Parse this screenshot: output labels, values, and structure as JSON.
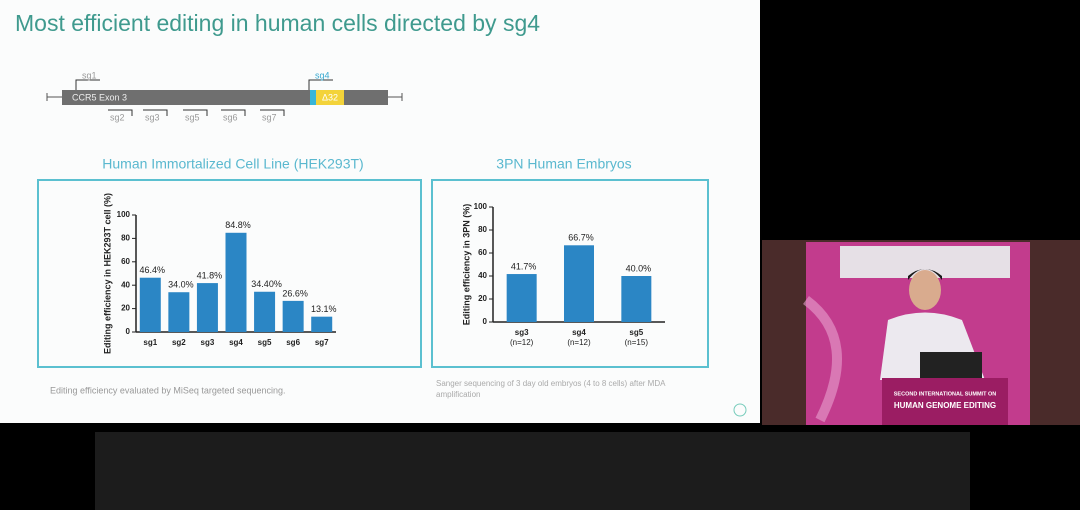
{
  "slide": {
    "title": "Most efficient editing in human cells directed by sg4",
    "gene_diagram": {
      "exon": "CCR5 Exon 3",
      "deletion": "Δ32",
      "guides_above": [
        "sg1",
        "sg4"
      ],
      "guides_below": [
        "sg2",
        "sg3",
        "sg5",
        "sg6",
        "sg7"
      ]
    },
    "footnotes": [
      "Editing efficiency evaluated by MiSeq targeted sequencing.",
      "Sanger sequencing of 3 day old embryos (4 to 8 cells) after MDA amplification"
    ]
  },
  "podium": {
    "line1": "SECOND INTERNATIONAL SUMMIT ON",
    "line2": "HUMAN GENOME EDITING"
  },
  "chart_data": [
    {
      "type": "bar",
      "title": "Human Immortalized Cell Line (HEK293T)",
      "y_label": "Editing efficiency in HEK293T cell (%)",
      "categories": [
        "sg1",
        "sg2",
        "sg3",
        "sg4",
        "sg5",
        "sg6",
        "sg7"
      ],
      "values": [
        46.4,
        34.0,
        41.8,
        84.8,
        34.4,
        26.6,
        13.1
      ],
      "value_labels": [
        "46.4%",
        "34.0%",
        "41.8%",
        "84.8%",
        "34.40%",
        "26.6%",
        "13.1%"
      ],
      "color": "#2b86c5",
      "ylim": [
        0,
        100
      ],
      "yticks": [
        0,
        20,
        40,
        60,
        80,
        100
      ]
    },
    {
      "type": "bar",
      "title": "3PN Human Embryos",
      "y_label": "Editing efficiency in 3PN (%)",
      "categories": [
        "sg3",
        "sg4",
        "sg5"
      ],
      "sample_sizes": [
        "(n=12)",
        "(n=12)",
        "(n=15)"
      ],
      "values": [
        41.7,
        66.7,
        40.0
      ],
      "value_labels": [
        "41.7%",
        "66.7%",
        "40.0%"
      ],
      "color": "#2b86c5",
      "ylim": [
        0,
        100
      ],
      "yticks": [
        0,
        20,
        40,
        60,
        80,
        100
      ]
    }
  ]
}
